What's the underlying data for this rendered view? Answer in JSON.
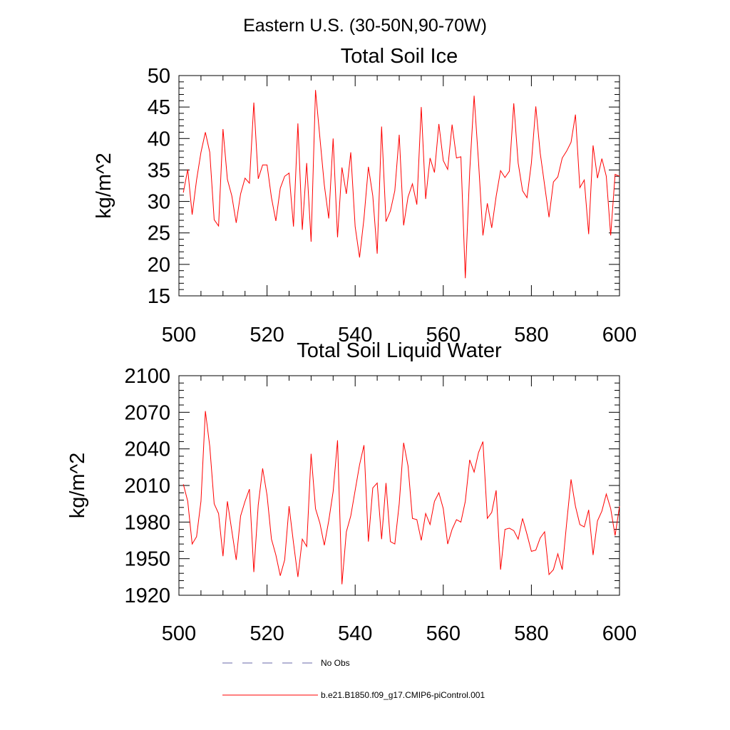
{
  "figure": {
    "suptitle": "Eastern U.S. (30-50N,90-70W)"
  },
  "colors": {
    "model": "#ff0000",
    "obs": "#6a6aa8",
    "axis": "#000000"
  },
  "legend": {
    "obs_label": "No Obs",
    "model_label": "b.e21.B1850.f09_g17.CMIP6-piControl.001"
  },
  "chart_data": [
    {
      "type": "line",
      "title": "Total Soil Ice",
      "xlabel": "",
      "ylabel": "kg/m^2",
      "xlim": [
        500,
        600
      ],
      "ylim": [
        15,
        50
      ],
      "xticks": [
        500,
        520,
        540,
        560,
        580,
        600
      ],
      "yticks": [
        15,
        20,
        25,
        30,
        35,
        40,
        45,
        50
      ],
      "xminor_step": 5,
      "yminor_step": 1,
      "grid": false,
      "series": [
        {
          "name": "b.e21.B1850.f09_g17.CMIP6-piControl.001",
          "x_start": 501,
          "x_step": 1,
          "values": [
            31.4,
            35.1,
            27.9,
            33.4,
            37.8,
            41.0,
            37.8,
            27.1,
            26.1,
            41.5,
            33.5,
            30.9,
            26.6,
            31.2,
            33.7,
            32.9,
            45.7,
            33.6,
            35.8,
            35.8,
            30.6,
            26.9,
            32.1,
            34.0,
            34.5,
            26.0,
            42.4,
            25.5,
            36.1,
            23.6,
            47.7,
            40.1,
            32.6,
            27.3,
            40.0,
            24.3,
            35.4,
            31.2,
            37.8,
            26.0,
            21.1,
            27.3,
            35.5,
            30.9,
            21.7,
            41.9,
            26.8,
            28.5,
            31.7,
            40.6,
            26.2,
            30.7,
            32.8,
            29.5,
            45.0,
            30.4,
            36.9,
            34.6,
            42.3,
            36.5,
            35.1,
            42.2,
            36.9,
            37.1,
            17.8,
            34.8,
            46.8,
            36.3,
            24.6,
            29.7,
            25.8,
            30.8,
            34.9,
            33.8,
            34.8,
            45.6,
            36.1,
            31.7,
            30.6,
            36.1,
            45.1,
            37.7,
            32.6,
            27.5,
            33.1,
            33.9,
            36.9,
            38.0,
            39.4,
            43.8,
            32.2,
            33.4,
            24.8,
            38.9,
            33.7,
            36.8,
            34.0,
            24.6,
            34.3,
            34.0
          ]
        }
      ]
    },
    {
      "type": "line",
      "title": "Total Soil Liquid Water",
      "xlabel": "",
      "ylabel": "kg/m^2",
      "xlim": [
        500,
        600
      ],
      "ylim": [
        1920,
        2100
      ],
      "xticks": [
        500,
        520,
        540,
        560,
        580,
        600
      ],
      "yticks": [
        1920,
        1950,
        1980,
        2010,
        2040,
        2070,
        2100
      ],
      "xminor_step": 5,
      "yminor_step": 6,
      "grid": false,
      "series": [
        {
          "name": "b.e21.B1850.f09_g17.CMIP6-piControl.001",
          "x_start": 501,
          "x_step": 1,
          "values": [
            2011,
            1997,
            1962,
            1968,
            1997,
            2071,
            2042,
            1995,
            1987,
            1952,
            1997,
            1973,
            1949,
            1985,
            1997,
            2007,
            1939,
            1994,
            2024,
            2002,
            1966,
            1953,
            1936,
            1949,
            1993,
            1963,
            1935,
            1966,
            1960,
            2036,
            1991,
            1979,
            1961,
            1981,
            2005,
            2047,
            1929,
            1972,
            1985,
            2006,
            2027,
            2043,
            1964,
            2008,
            2012,
            1966,
            2012,
            1964,
            1962,
            1995,
            2045,
            2026,
            1983,
            1982,
            1965,
            1987,
            1978,
            1997,
            2004,
            1991,
            1962,
            1974,
            1982,
            1980,
            1997,
            2031,
            2021,
            2037,
            2046,
            1983,
            1988,
            2006,
            1941,
            1974,
            1975,
            1973,
            1966,
            1983,
            1970,
            1956,
            1957,
            1967,
            1972,
            1937,
            1941,
            1954,
            1941,
            1979,
            2015,
            1993,
            1978,
            1976,
            1990,
            1953,
            1981,
            1989,
            2003,
            1991,
            1969,
            1993
          ]
        }
      ]
    }
  ]
}
